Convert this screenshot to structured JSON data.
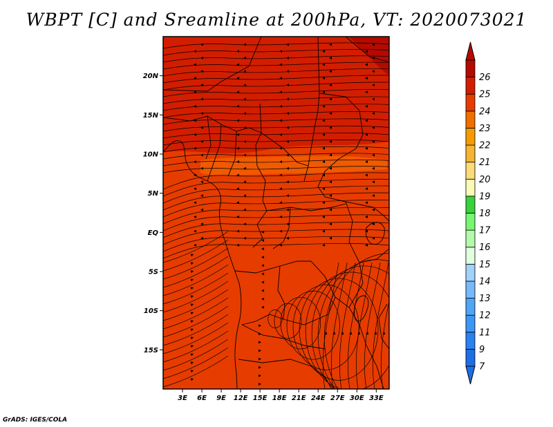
{
  "title": "WBPT [C] and Sreamline at 200hPa, VT: 2020073021",
  "footer": "GrADS: IGES/COLA",
  "map": {
    "lon_range": [
      0,
      35
    ],
    "lat_range": [
      -20,
      25
    ],
    "lon_ticks": [
      {
        "v": 3,
        "label": "3E"
      },
      {
        "v": 6,
        "label": "6E"
      },
      {
        "v": 9,
        "label": "9E"
      },
      {
        "v": 12,
        "label": "12E"
      },
      {
        "v": 15,
        "label": "15E"
      },
      {
        "v": 18,
        "label": "18E"
      },
      {
        "v": 21,
        "label": "21E"
      },
      {
        "v": 24,
        "label": "24E"
      },
      {
        "v": 27,
        "label": "27E"
      },
      {
        "v": 30,
        "label": "30E"
      },
      {
        "v": 33,
        "label": "33E"
      }
    ],
    "lat_ticks": [
      {
        "v": 20,
        "label": "20N"
      },
      {
        "v": 15,
        "label": "15N"
      },
      {
        "v": 10,
        "label": "10N"
      },
      {
        "v": 5,
        "label": "5N"
      },
      {
        "v": 0,
        "label": "EQ"
      },
      {
        "v": -5,
        "label": "5S"
      },
      {
        "v": -10,
        "label": "10S"
      },
      {
        "v": -15,
        "label": "15S"
      }
    ]
  },
  "colorbar": {
    "labels": [
      "7",
      "9",
      "11",
      "12",
      "13",
      "14",
      "15",
      "16",
      "17",
      "18",
      "19",
      "20",
      "21",
      "22",
      "23",
      "24",
      "25",
      "26"
    ],
    "colors": [
      "#1e6ee6",
      "#2882f0",
      "#3c96f5",
      "#50a5f5",
      "#78b9fa",
      "#a0d2fa",
      "#e1ffe1",
      "#b4faaa",
      "#78f573",
      "#37d23c",
      "#fafab4",
      "#fadc78",
      "#f5b432",
      "#f59b00",
      "#f06e00",
      "#e63c00",
      "#d21e00",
      "#b40a00"
    ],
    "extend_low_color": "#1e6ee6",
    "extend_high_color": "#b40a00"
  },
  "field_colors": {
    "main": "#e63c00",
    "north": "#d21e00",
    "band": "#f05a00",
    "corner": "#b40a00"
  }
}
